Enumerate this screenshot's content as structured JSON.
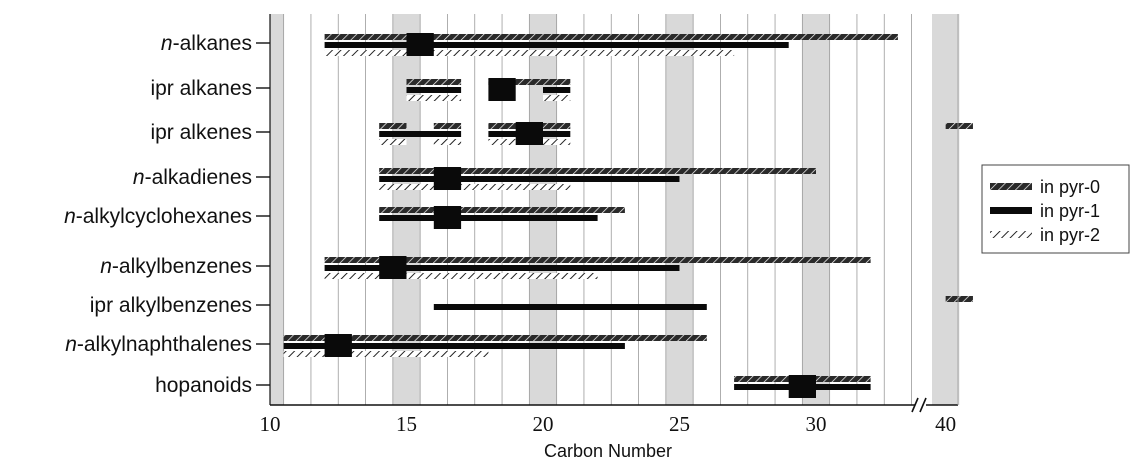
{
  "chart_data": {
    "type": "bar",
    "xlabel": "Carbon Number",
    "x_ticks": [
      "10",
      "15",
      "20",
      "25",
      "30",
      "40"
    ],
    "xlim_segments": [
      [
        10,
        34
      ],
      [
        39.5,
        41
      ]
    ],
    "axis_break": true,
    "shaded_columns": [
      10,
      15,
      20,
      25,
      30,
      40
    ],
    "legend": {
      "position": "right",
      "entries": [
        {
          "key": "pyr0",
          "label": "in  pyr-0",
          "style": "hatched-black"
        },
        {
          "key": "pyr1",
          "label": "in  pyr-1",
          "style": "solid-black"
        },
        {
          "key": "pyr2",
          "label": "in  pyr-2",
          "style": "hatched-light"
        }
      ]
    },
    "categories": [
      {
        "italic": "n",
        "rest": "-alkanes",
        "pyr0": [
          [
            12,
            33
          ]
        ],
        "pyr1": [
          [
            12,
            29
          ]
        ],
        "pyr2": [
          [
            12,
            27
          ]
        ],
        "blocks": [
          [
            15,
            16
          ]
        ]
      },
      {
        "italic": "",
        "rest": "ipr  alkanes",
        "pyr0": [
          [
            15,
            17
          ],
          [
            18,
            21
          ]
        ],
        "pyr1": [
          [
            15,
            17
          ],
          [
            20,
            21
          ]
        ],
        "pyr2": [
          [
            15,
            17
          ],
          [
            20,
            21
          ]
        ],
        "blocks": [
          [
            18,
            19
          ]
        ]
      },
      {
        "italic": "",
        "rest": "ipr  alkenes",
        "pyr0": [
          [
            14,
            15
          ],
          [
            16,
            17
          ],
          [
            18,
            21
          ],
          [
            40,
            41
          ]
        ],
        "pyr1": [
          [
            14,
            17
          ],
          [
            18,
            21
          ]
        ],
        "pyr2": [
          [
            14,
            15
          ],
          [
            16,
            17
          ],
          [
            18,
            21
          ]
        ],
        "blocks": [
          [
            19,
            20
          ]
        ]
      },
      {
        "italic": "n",
        "rest": "-alkadienes",
        "pyr0": [
          [
            14,
            30
          ]
        ],
        "pyr1": [
          [
            14,
            25
          ]
        ],
        "pyr2": [
          [
            14,
            21
          ]
        ],
        "blocks": [
          [
            16,
            17
          ]
        ]
      },
      {
        "italic": "n",
        "rest": "-alkylcyclohexanes",
        "pyr0": [
          [
            14,
            23
          ]
        ],
        "pyr1": [
          [
            14,
            22
          ]
        ],
        "pyr2": [],
        "blocks": [
          [
            16,
            17
          ]
        ]
      },
      {
        "italic": "n",
        "rest": "-alkylbenzenes",
        "pyr0": [
          [
            12,
            32
          ]
        ],
        "pyr1": [
          [
            12,
            25
          ]
        ],
        "pyr2": [
          [
            12,
            22
          ]
        ],
        "blocks": [
          [
            14,
            15
          ]
        ]
      },
      {
        "italic": "",
        "rest": "ipr  alkylbenzenes",
        "pyr0": [
          [
            40,
            41
          ]
        ],
        "pyr1": [
          [
            16,
            26
          ]
        ],
        "pyr2": [],
        "blocks": []
      },
      {
        "italic": "n",
        "rest": "-alkylnaphthalenes",
        "pyr0": [
          [
            10.5,
            26
          ]
        ],
        "pyr1": [
          [
            10.5,
            23
          ]
        ],
        "pyr2": [
          [
            10.5,
            18
          ]
        ],
        "blocks": [
          [
            12,
            13
          ]
        ]
      },
      {
        "italic": "",
        "rest": "hopanoids",
        "pyr0": [
          [
            27,
            32
          ]
        ],
        "pyr1": [
          [
            27,
            32
          ]
        ],
        "pyr2": [],
        "blocks": [
          [
            29,
            30
          ]
        ]
      }
    ]
  }
}
